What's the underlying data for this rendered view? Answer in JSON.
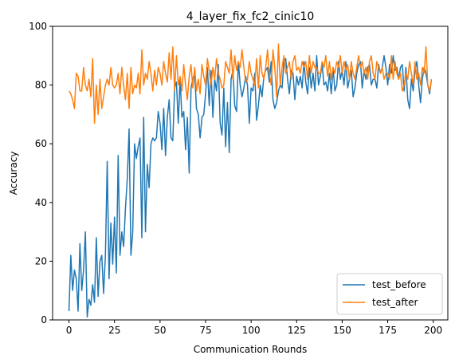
{
  "chart_data": {
    "type": "line",
    "title": "4_layer_fix_fc2_cinic10",
    "xlabel": "Communication Rounds",
    "ylabel": "Accuracy",
    "xlim": [
      -9,
      208
    ],
    "ylim": [
      0,
      100
    ],
    "xticks": [
      0,
      25,
      50,
      75,
      100,
      125,
      150,
      175,
      200
    ],
    "yticks": [
      0,
      20,
      40,
      60,
      80,
      100
    ],
    "grid": false,
    "legend_position": "lower-right",
    "series": [
      {
        "name": "test_before",
        "color": "#1f77b4",
        "x_step": 1,
        "values": [
          3,
          22,
          10,
          17,
          14,
          3,
          26,
          10,
          17,
          30,
          1,
          7,
          5,
          12,
          6,
          28,
          8,
          20,
          22,
          9,
          22,
          54,
          14,
          33,
          19,
          35,
          16,
          56,
          22,
          30,
          25,
          38,
          48,
          65,
          22,
          30,
          60,
          55,
          59,
          62,
          28,
          69,
          30,
          53,
          45,
          60,
          62,
          61,
          62,
          71,
          67,
          58,
          72,
          56,
          69,
          75,
          62,
          61,
          79,
          81,
          67,
          82,
          69,
          71,
          58,
          69,
          50,
          79,
          82,
          84,
          72,
          70,
          62,
          69,
          70,
          77,
          86,
          73,
          85,
          69,
          82,
          78,
          87,
          67,
          63,
          79,
          59,
          74,
          57,
          82,
          85,
          73,
          71,
          88,
          80,
          76,
          79,
          83,
          80,
          67,
          79,
          78,
          84,
          68,
          73,
          80,
          76,
          83,
          85,
          86,
          81,
          88,
          75,
          72,
          74,
          78,
          80,
          79,
          88,
          89,
          82,
          77,
          85,
          84,
          75,
          83,
          80,
          83,
          79,
          88,
          81,
          77,
          86,
          79,
          84,
          78,
          90,
          80,
          83,
          87,
          80,
          81,
          78,
          84,
          77,
          86,
          78,
          80,
          88,
          82,
          85,
          80,
          88,
          79,
          82,
          85,
          76,
          79,
          84,
          87,
          88,
          79,
          85,
          82,
          86,
          87,
          80,
          82,
          82,
          79,
          87,
          84,
          86,
          90,
          86,
          80,
          87,
          84,
          90,
          85,
          86,
          82,
          86,
          87,
          78,
          86,
          75,
          72,
          82,
          78,
          85,
          88,
          80,
          74,
          82,
          86,
          84,
          80,
          77,
          82
        ]
      },
      {
        "name": "test_after",
        "color": "#ff7f0e",
        "x_step": 1,
        "values": [
          78,
          77,
          75,
          72,
          84,
          83,
          78,
          78,
          86,
          80,
          78,
          82,
          76,
          89,
          67,
          80,
          70,
          82,
          72,
          76,
          80,
          82,
          80,
          86,
          80,
          79,
          80,
          84,
          77,
          86,
          80,
          75,
          84,
          72,
          86,
          77,
          80,
          79,
          84,
          77,
          92,
          80,
          84,
          82,
          88,
          84,
          78,
          85,
          80,
          86,
          84,
          80,
          88,
          84,
          81,
          91,
          82,
          93,
          78,
          90,
          80,
          83,
          78,
          87,
          80,
          75,
          83,
          87,
          79,
          86,
          78,
          82,
          77,
          87,
          83,
          80,
          89,
          85,
          80,
          86,
          82,
          89,
          84,
          82,
          79,
          80,
          88,
          86,
          84,
          92,
          82,
          90,
          85,
          88,
          86,
          92,
          86,
          81,
          82,
          88,
          84,
          82,
          80,
          89,
          79,
          90,
          84,
          82,
          86,
          92,
          84,
          80,
          92,
          86,
          76,
          94,
          80,
          86,
          90,
          84,
          86,
          88,
          82,
          88,
          90,
          85,
          86,
          84,
          88,
          86,
          88,
          82,
          90,
          84,
          88,
          86,
          86,
          84,
          84,
          88,
          86,
          90,
          83,
          88,
          82,
          86,
          84,
          88,
          86,
          90,
          84,
          88,
          85,
          87,
          82,
          88,
          84,
          82,
          86,
          90,
          86,
          88,
          84,
          86,
          82,
          88,
          90,
          84,
          82,
          88,
          86,
          84,
          86,
          82,
          84,
          84,
          82,
          90,
          82,
          88,
          84,
          82,
          84,
          78,
          80,
          84,
          82,
          88,
          84,
          80,
          88,
          82,
          84,
          80,
          86,
          84,
          93,
          80,
          78,
          82
        ]
      }
    ]
  }
}
